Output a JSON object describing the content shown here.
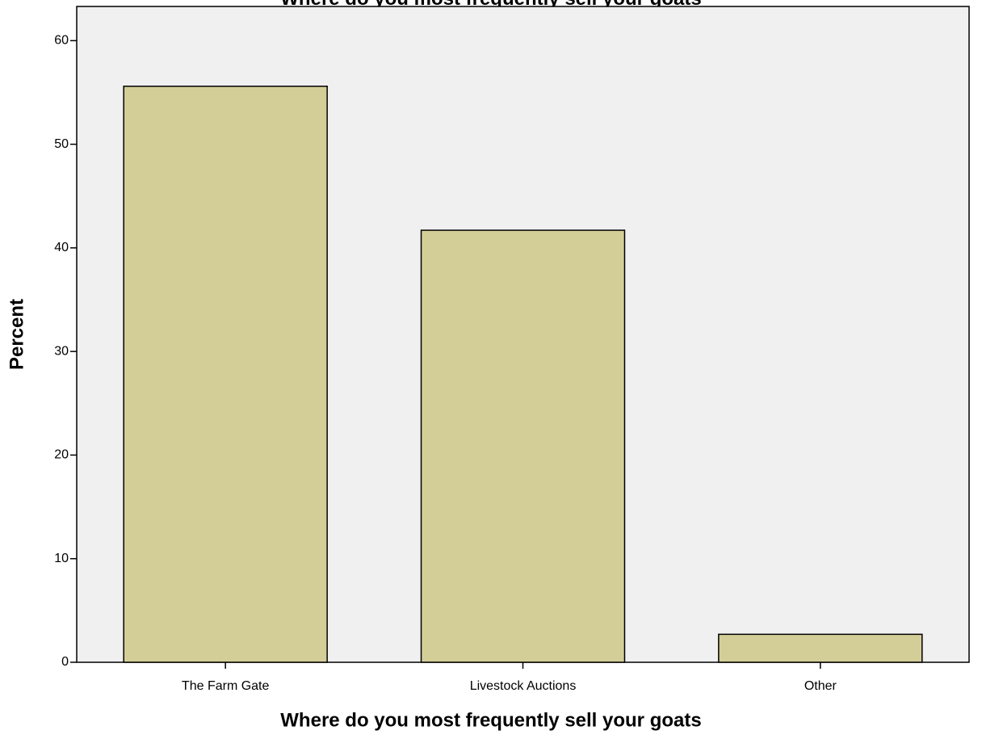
{
  "chart_data": {
    "type": "bar",
    "title": "Where do you most frequently sell your goats",
    "x_label": "Where do you most frequently sell your goats",
    "y_label": "Percent",
    "categories": [
      "The Farm Gate",
      "Livestock Auctions",
      "Other"
    ],
    "values": [
      55.6,
      41.7,
      2.7
    ],
    "color": "#d3ce98",
    "ylim": [
      0,
      63.3
    ],
    "yticks": [
      0,
      10,
      20,
      30,
      40,
      50,
      60
    ],
    "grid": false
  }
}
